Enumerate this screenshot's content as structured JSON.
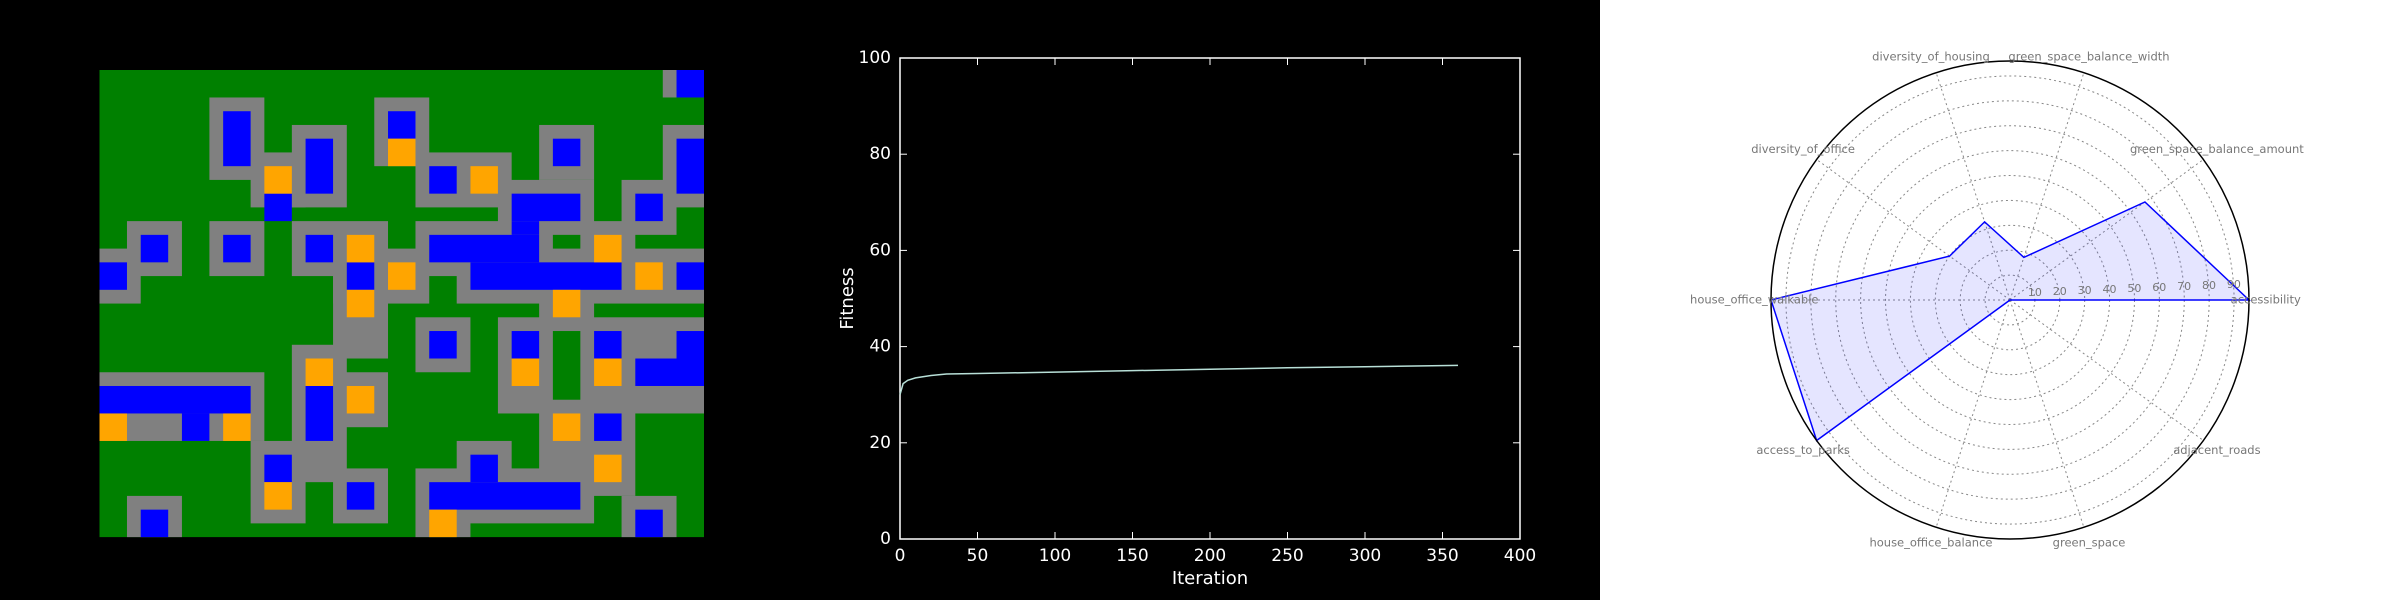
{
  "chart_data": [
    {
      "type": "map",
      "cols": 44,
      "rows": 34,
      "colors": {
        "ground": "#008000",
        "roads": "#808080",
        "blue": "#0000ff",
        "orange": "#ffa500"
      },
      "roads": [
        [
          41,
          0,
          3,
          2
        ],
        [
          8,
          2,
          4,
          6
        ],
        [
          20,
          2,
          4,
          5
        ],
        [
          11,
          6,
          4,
          4
        ],
        [
          14,
          4,
          4,
          6
        ],
        [
          23,
          6,
          7,
          4
        ],
        [
          32,
          4,
          4,
          4
        ],
        [
          41,
          4,
          3,
          6
        ],
        [
          29,
          8,
          7,
          4
        ],
        [
          38,
          8,
          4,
          4
        ],
        [
          23,
          11,
          10,
          4
        ],
        [
          26,
          13,
          18,
          4
        ],
        [
          2,
          11,
          4,
          4
        ],
        [
          0,
          13,
          3,
          4
        ],
        [
          8,
          11,
          4,
          4
        ],
        [
          14,
          11,
          7,
          4
        ],
        [
          17,
          13,
          7,
          4
        ],
        [
          35,
          11,
          4,
          4
        ],
        [
          17,
          15,
          4,
          6
        ],
        [
          32,
          15,
          4,
          4
        ],
        [
          23,
          18,
          4,
          4
        ],
        [
          29,
          18,
          4,
          7
        ],
        [
          35,
          18,
          9,
          7
        ],
        [
          14,
          20,
          4,
          10
        ],
        [
          17,
          22,
          4,
          4
        ],
        [
          0,
          22,
          12,
          5
        ],
        [
          32,
          24,
          7,
          7
        ],
        [
          11,
          27,
          4,
          6
        ],
        [
          17,
          29,
          4,
          4
        ],
        [
          26,
          27,
          4,
          4
        ],
        [
          23,
          29,
          13,
          4
        ],
        [
          2,
          31,
          4,
          3
        ],
        [
          23,
          31,
          4,
          3
        ],
        [
          38,
          31,
          4,
          3
        ]
      ],
      "blue": [
        [
          42,
          0,
          2,
          2
        ],
        [
          9,
          3,
          2,
          4
        ],
        [
          21,
          3,
          2,
          2
        ],
        [
          15,
          5,
          2,
          4
        ],
        [
          33,
          5,
          2,
          2
        ],
        [
          42,
          5,
          2,
          4
        ],
        [
          24,
          7,
          2,
          2
        ],
        [
          12,
          9,
          2,
          2
        ],
        [
          30,
          9,
          5,
          2
        ],
        [
          39,
          9,
          2,
          2
        ],
        [
          30,
          11,
          2,
          1
        ],
        [
          24,
          12,
          8,
          2
        ],
        [
          27,
          14,
          11,
          2
        ],
        [
          42,
          14,
          2,
          2
        ],
        [
          3,
          12,
          2,
          2
        ],
        [
          0,
          14,
          2,
          2
        ],
        [
          9,
          12,
          2,
          2
        ],
        [
          15,
          12,
          2,
          2
        ],
        [
          18,
          14,
          2,
          2
        ],
        [
          24,
          19,
          2,
          2
        ],
        [
          30,
          19,
          2,
          2
        ],
        [
          36,
          19,
          2,
          2
        ],
        [
          42,
          19,
          2,
          3
        ],
        [
          39,
          21,
          5,
          2
        ],
        [
          15,
          23,
          2,
          4
        ],
        [
          0,
          23,
          11,
          2
        ],
        [
          6,
          25,
          2,
          2
        ],
        [
          36,
          25,
          2,
          2
        ],
        [
          12,
          28,
          2,
          2
        ],
        [
          18,
          30,
          2,
          2
        ],
        [
          27,
          28,
          2,
          2
        ],
        [
          24,
          30,
          11,
          2
        ],
        [
          3,
          32,
          2,
          2
        ],
        [
          39,
          32,
          2,
          2
        ]
      ],
      "orange": [
        [
          21,
          5,
          2,
          2
        ],
        [
          12,
          7,
          2,
          2
        ],
        [
          27,
          7,
          2,
          2
        ],
        [
          18,
          12,
          2,
          2
        ],
        [
          36,
          12,
          2,
          2
        ],
        [
          39,
          14,
          2,
          2
        ],
        [
          21,
          14,
          2,
          2
        ],
        [
          18,
          16,
          2,
          2
        ],
        [
          33,
          16,
          2,
          2
        ],
        [
          30,
          21,
          2,
          2
        ],
        [
          36,
          21,
          2,
          2
        ],
        [
          15,
          21,
          2,
          2
        ],
        [
          18,
          23,
          2,
          2
        ],
        [
          0,
          25,
          2,
          2
        ],
        [
          9,
          25,
          2,
          2
        ],
        [
          33,
          25,
          2,
          2
        ],
        [
          36,
          28,
          2,
          2
        ],
        [
          12,
          30,
          2,
          2
        ],
        [
          24,
          32,
          2,
          2
        ]
      ]
    },
    {
      "type": "line",
      "xlabel": "Iteration",
      "ylabel": "Fitness",
      "x": [
        0,
        2,
        5,
        10,
        20,
        30,
        50,
        100,
        150,
        200,
        250,
        300,
        360
      ],
      "values": [
        30,
        32.3,
        33,
        33.5,
        34,
        34.3,
        34.4,
        34.7,
        35,
        35.3,
        35.6,
        35.8,
        36.1
      ],
      "color": "#b8e0d8",
      "xlim": [
        0,
        400
      ],
      "xticks": [
        0,
        50,
        100,
        150,
        200,
        250,
        300,
        350,
        400
      ],
      "ylim": [
        0,
        100
      ],
      "yticks": [
        0,
        20,
        40,
        60,
        80,
        100
      ]
    },
    {
      "type": "radar",
      "categories": [
        "accessibility",
        "green_space_balance_amount",
        "green_space_balance_width",
        "diversity_of_housing",
        "diversity_of_office",
        "house_office_walkable",
        "access_to_parks",
        "house_office_balance",
        "green_space",
        "adjacent_roads"
      ],
      "values": [
        96,
        67,
        18,
        33,
        30,
        96,
        96,
        0,
        0,
        0
      ],
      "color": "#0000ff",
      "rlim": [
        0,
        96
      ],
      "rticks": [
        10,
        20,
        30,
        40,
        50,
        60,
        70,
        80,
        90
      ],
      "grid": true
    }
  ]
}
